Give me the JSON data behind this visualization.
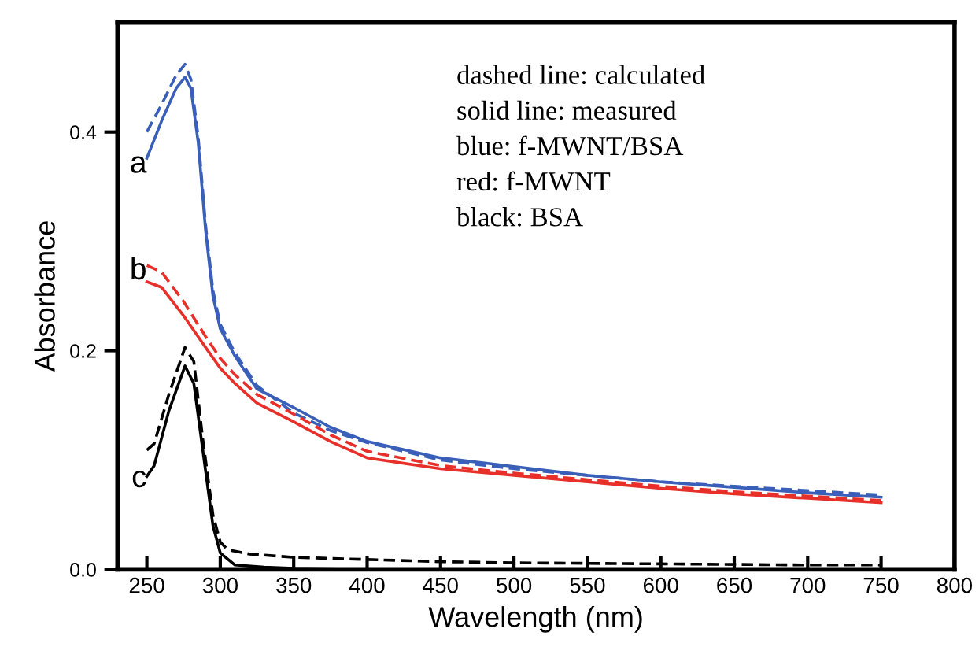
{
  "chart_data": {
    "type": "line",
    "xlabel": "Wavelength (nm)",
    "ylabel": "Absorbance",
    "xlim": [
      230,
      800
    ],
    "xticks": [
      250,
      300,
      350,
      400,
      450,
      500,
      550,
      600,
      650,
      700,
      750,
      800
    ],
    "ylim": [
      0,
      0.5
    ],
    "yticks": [
      {
        "value": 0,
        "label": "0.0"
      },
      {
        "value": 0.2,
        "label": "0.2"
      },
      {
        "value": 0.4,
        "label": "0.4"
      }
    ],
    "grid": false,
    "legend": false,
    "marker": "none",
    "series": [
      {
        "color": "#3a5fb8",
        "line_style": "dashed",
        "x": [
          250,
          260,
          270,
          276,
          280,
          285,
          290,
          295,
          300,
          310,
          325,
          350,
          375,
          400,
          450,
          500,
          550,
          600,
          650,
          700,
          750
        ],
        "values": [
          0.4,
          0.425,
          0.452,
          0.462,
          0.448,
          0.395,
          0.315,
          0.255,
          0.224,
          0.198,
          0.168,
          0.143,
          0.127,
          0.116,
          0.1,
          0.092,
          0.086,
          0.08,
          0.076,
          0.072,
          0.068
        ]
      },
      {
        "color": "#3a5fb8",
        "line_style": "solid",
        "x": [
          250,
          260,
          270,
          276,
          280,
          285,
          290,
          295,
          300,
          310,
          325,
          350,
          375,
          400,
          450,
          500,
          550,
          600,
          650,
          700,
          750
        ],
        "values": [
          0.376,
          0.41,
          0.44,
          0.45,
          0.44,
          0.39,
          0.31,
          0.25,
          0.22,
          0.195,
          0.165,
          0.148,
          0.13,
          0.117,
          0.102,
          0.094,
          0.086,
          0.08,
          0.075,
          0.07,
          0.066
        ]
      },
      {
        "color": "#e8302a",
        "line_style": "dashed",
        "x": [
          250,
          260,
          275,
          290,
          300,
          310,
          325,
          350,
          375,
          400,
          450,
          500,
          550,
          600,
          650,
          700,
          750
        ],
        "values": [
          0.278,
          0.272,
          0.245,
          0.213,
          0.193,
          0.178,
          0.16,
          0.142,
          0.123,
          0.108,
          0.095,
          0.088,
          0.082,
          0.076,
          0.071,
          0.067,
          0.063
        ]
      },
      {
        "color": "#e8302a",
        "line_style": "solid",
        "x": [
          250,
          260,
          275,
          290,
          300,
          310,
          325,
          350,
          375,
          400,
          450,
          500,
          550,
          600,
          650,
          700,
          750
        ],
        "values": [
          0.263,
          0.258,
          0.232,
          0.203,
          0.184,
          0.17,
          0.152,
          0.135,
          0.117,
          0.102,
          0.092,
          0.086,
          0.08,
          0.074,
          0.069,
          0.065,
          0.061
        ]
      },
      {
        "color": "#000000",
        "line_style": "dashed",
        "x": [
          250,
          255,
          265,
          276,
          282,
          288,
          295,
          300,
          305,
          320,
          350,
          400,
          450,
          500,
          600,
          700,
          750
        ],
        "values": [
          0.109,
          0.115,
          0.16,
          0.203,
          0.19,
          0.12,
          0.05,
          0.025,
          0.018,
          0.014,
          0.011,
          0.009,
          0.007,
          0.006,
          0.005,
          0.004,
          0.004
        ]
      },
      {
        "color": "#000000",
        "line_style": "solid",
        "x": [
          250,
          255,
          265,
          276,
          282,
          288,
          295,
          300,
          310,
          330,
          350,
          400,
          500,
          600,
          700,
          750
        ],
        "values": [
          0.085,
          0.095,
          0.145,
          0.186,
          0.17,
          0.11,
          0.04,
          0.015,
          0.004,
          0.002,
          0.001,
          0.0,
          0.0,
          0.0,
          0.0,
          0.0
        ]
      }
    ],
    "annotations": [
      "a",
      "b",
      "c",
      "dashed line: calculated",
      "solid line: measured",
      "blue: f-MWNT/BSA",
      "red: f-MWNT",
      "black: BSA"
    ]
  }
}
